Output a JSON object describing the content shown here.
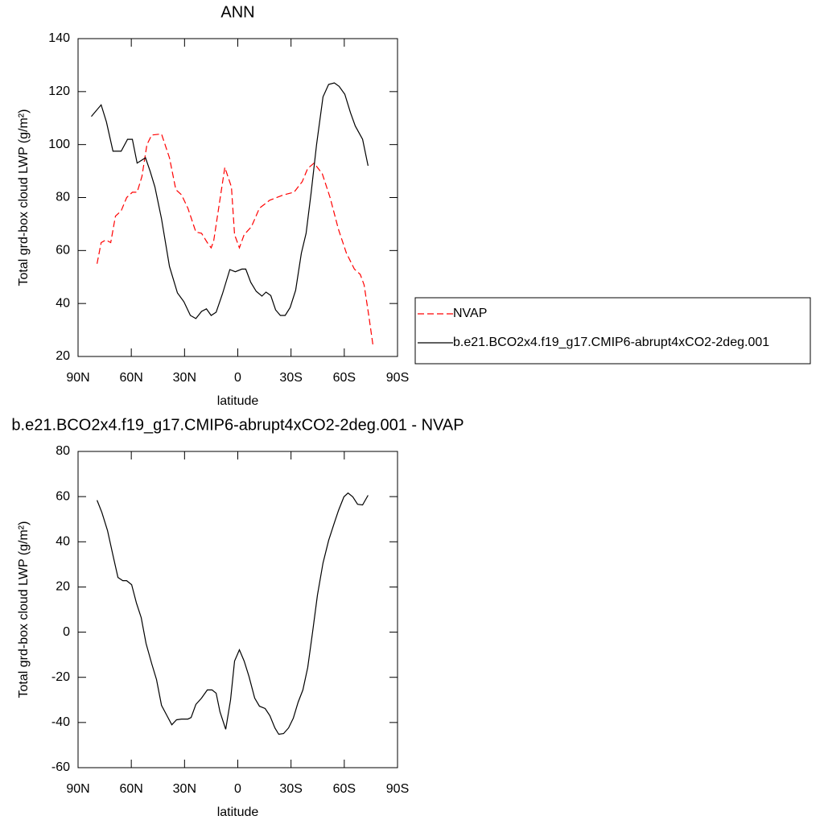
{
  "chart_data": [
    {
      "type": "line",
      "title": "ANN",
      "x_label": "latitude",
      "y_label": "Total grd-box cloud LWP (g/m²)",
      "xlim": [
        90,
        -90
      ],
      "xticks": [
        {
          "value": 90,
          "label": "90N"
        },
        {
          "value": 60,
          "label": "60N"
        },
        {
          "value": 30,
          "label": "30N"
        },
        0,
        {
          "value": -30,
          "label": "30S"
        },
        {
          "value": -60,
          "label": "60S"
        },
        {
          "value": -90,
          "label": "90S"
        }
      ],
      "ylim": [
        20,
        140
      ],
      "yticks": [
        20,
        40,
        60,
        80,
        100,
        120,
        140
      ],
      "legend": "right",
      "series": [
        {
          "name": "NVAP",
          "color": "#ff0000",
          "dashed": true,
          "x": [
            79.3,
            77,
            74.3,
            71.6,
            68.9,
            65.7,
            62.6,
            59.4,
            56.7,
            54,
            51.2,
            48.5,
            43,
            38.5,
            34.9,
            31.7,
            28.1,
            23.6,
            20.4,
            17.2,
            15,
            13.6,
            7.3,
            3.6,
            1.8,
            -0.9,
            -3.6,
            -7.7,
            -12.2,
            -18,
            -25.8,
            -31.7,
            -36.3,
            -39.4,
            -43,
            -47.6,
            -52,
            -56.7,
            -61.2,
            -65.7,
            -69,
            -71.2,
            -73.9,
            -76.2
          ],
          "values": [
            55,
            63,
            64,
            63,
            73,
            75,
            80,
            82,
            82,
            88,
            100,
            103.6,
            104,
            95,
            83,
            81,
            76,
            67,
            66.5,
            63,
            61,
            63.5,
            91.4,
            84,
            66,
            61,
            66,
            69,
            76,
            79,
            81,
            82,
            86,
            91,
            93,
            89,
            80,
            68,
            59,
            53,
            51,
            47,
            35,
            24
          ]
        },
        {
          "name": "b.e21.BCO2x4.f19_g17.CMIP6-abrupt4xCO2-2deg.001",
          "color": "#000000",
          "dashed": false,
          "x": [
            82.5,
            77,
            74,
            70.3,
            65.7,
            62.1,
            59.4,
            56.7,
            52,
            49.4,
            46.7,
            43,
            38.5,
            34,
            30.4,
            26.7,
            23.6,
            20.4,
            17.7,
            15,
            12.2,
            8.6,
            4.5,
            1.4,
            -2.3,
            -4.5,
            -7.3,
            -10.4,
            -13.6,
            -15.9,
            -18.6,
            -21.3,
            -24,
            -26.7,
            -29.5,
            -32.6,
            -35.8,
            -38.5,
            -41.3,
            -44.4,
            -48,
            -51.2,
            -54.4,
            -57.1,
            -60.3,
            -63.5,
            -66.2,
            -70.3,
            -73.4
          ],
          "values": [
            110.6,
            115,
            108.5,
            97.5,
            97.5,
            102,
            102,
            93,
            95,
            90,
            84,
            72,
            54,
            44,
            40.7,
            35.5,
            34.3,
            37,
            38,
            35.5,
            36.7,
            43.7,
            52.8,
            52,
            53,
            53,
            48,
            44.6,
            42.8,
            44.3,
            43,
            37.6,
            35.5,
            35.5,
            38.5,
            45,
            59,
            66.5,
            81.7,
            100,
            118,
            122.7,
            123.3,
            122,
            119,
            112,
            107,
            102,
            92
          ]
        }
      ]
    },
    {
      "type": "line",
      "title": "b.e21.BCO2x4.f19_g17.CMIP6-abrupt4xCO2-2deg.001 - NVAP",
      "x_label": "latitude",
      "y_label": "Total grd-box cloud LWP (g/m²)",
      "xlim": [
        90,
        -90
      ],
      "xticks": [
        {
          "value": 90,
          "label": "90N"
        },
        {
          "value": 60,
          "label": "60N"
        },
        {
          "value": 30,
          "label": "30N"
        },
        0,
        {
          "value": -30,
          "label": "30S"
        },
        {
          "value": -60,
          "label": "60S"
        },
        {
          "value": -90,
          "label": "90S"
        }
      ],
      "ylim": [
        -60,
        80
      ],
      "yticks": [
        -60,
        -40,
        -20,
        0,
        20,
        40,
        60,
        80
      ],
      "series": [
        {
          "color": "#000000",
          "dashed": false,
          "x": [
            79.3,
            76.6,
            73.4,
            70.3,
            67.5,
            64.8,
            62.6,
            59.8,
            57.1,
            54.4,
            51.7,
            48.5,
            45.8,
            43,
            39.9,
            37.2,
            34.5,
            31.7,
            28.1,
            26.3,
            23.6,
            20.4,
            17.2,
            14.5,
            12.2,
            10,
            6.8,
            4.1,
            1.8,
            -0.9,
            -3.6,
            -6.3,
            -9.5,
            -12.2,
            -15.4,
            -18.1,
            -20.9,
            -23.1,
            -25.8,
            -28.6,
            -31.3,
            -34,
            -36.7,
            -39.4,
            -42.2,
            -44.9,
            -48,
            -51.2,
            -54.4,
            -56.7,
            -59.8,
            -62.1,
            -64.8,
            -67.5,
            -70.3,
            -73.4
          ],
          "values": [
            58.4,
            53,
            45,
            34,
            24.2,
            22.8,
            22.8,
            21,
            12.8,
            6.4,
            -5,
            -13.9,
            -21,
            -32.4,
            -37,
            -41,
            -38.8,
            -38.5,
            -38.5,
            -37.8,
            -32,
            -29.2,
            -25.6,
            -25.6,
            -27,
            -35.3,
            -43,
            -30,
            -12.8,
            -7.8,
            -12.8,
            -19.6,
            -29.2,
            -32.8,
            -33.8,
            -37,
            -42.4,
            -45.2,
            -44.9,
            -42.4,
            -38.1,
            -31,
            -25.6,
            -15.7,
            0.4,
            16.4,
            30.6,
            40.6,
            48.4,
            53.8,
            59.9,
            61.6,
            59.9,
            56.6,
            56.3,
            60.6
          ]
        }
      ]
    }
  ]
}
